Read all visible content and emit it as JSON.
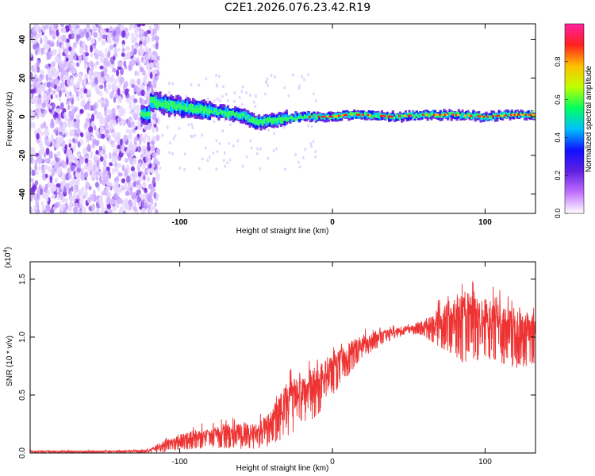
{
  "title": "C2E1.2026.076.23.42.R19",
  "colors": {
    "spectrum_base": "#7a2be0",
    "snr_line": "#ee3333",
    "axis": "#000000"
  },
  "chart_data": [
    {
      "type": "heatmap",
      "name": "spectrogram",
      "xlabel": "Height of straight line (km)",
      "ylabel": "Frequency (Hz)",
      "xlim": [
        -198,
        133
      ],
      "ylim": [
        -50,
        48
      ],
      "xticks": [
        -100,
        0,
        100
      ],
      "yticks": [
        -40,
        -20,
        0,
        20,
        40
      ],
      "noise_region_end_km": -120,
      "signal_track_hz": [
        [
          -120,
          8
        ],
        [
          -100,
          5
        ],
        [
          -80,
          3
        ],
        [
          -60,
          1
        ],
        [
          -50,
          -3
        ],
        [
          -40,
          -2
        ],
        [
          -30,
          -1
        ],
        [
          -20,
          0
        ],
        [
          0,
          0
        ],
        [
          10,
          1
        ],
        [
          20,
          1
        ],
        [
          40,
          0
        ],
        [
          60,
          1
        ],
        [
          80,
          1
        ],
        [
          100,
          0
        ],
        [
          120,
          1
        ],
        [
          133,
          1
        ]
      ],
      "colorbar": {
        "label": "Normalized spectral amplitude",
        "ticks": [
          0.0,
          0.2,
          0.4,
          0.6,
          0.8
        ],
        "range": [
          0,
          1
        ],
        "colors": [
          "#ffffff",
          "#c070ff",
          "#6020e0",
          "#1010ff",
          "#00c0ff",
          "#00ff60",
          "#c0ff00",
          "#ffc000",
          "#ff2020",
          "#ff20a0"
        ]
      }
    },
    {
      "type": "line",
      "name": "snr",
      "xlabel": "Height of straight line (km)",
      "ylabel": "SNR (10 * v/v)",
      "scale_label": "(x10",
      "scale_exp": "4",
      "xlim": [
        -198,
        133
      ],
      "ylim": [
        0,
        1.65
      ],
      "xticks": [
        -100,
        0,
        100
      ],
      "yticks": [
        0.0,
        0.5,
        1.0,
        1.5
      ],
      "ytick_labels": [
        "0.0",
        "0.5",
        "1.0",
        "1.5"
      ],
      "envelope": [
        [
          -198,
          0.02,
          0.0
        ],
        [
          -140,
          0.02,
          0.0
        ],
        [
          -120,
          0.03,
          0.0
        ],
        [
          -110,
          0.12,
          0.0
        ],
        [
          -90,
          0.2,
          0.03
        ],
        [
          -70,
          0.25,
          0.03
        ],
        [
          -50,
          0.25,
          0.02
        ],
        [
          -40,
          0.38,
          0.05
        ],
        [
          -30,
          0.6,
          0.12
        ],
        [
          -20,
          0.68,
          0.2
        ],
        [
          -10,
          0.78,
          0.3
        ],
        [
          0,
          0.85,
          0.48
        ],
        [
          10,
          0.95,
          0.65
        ],
        [
          20,
          1.02,
          0.82
        ],
        [
          40,
          1.08,
          0.98
        ],
        [
          50,
          1.1,
          1.02
        ],
        [
          60,
          1.15,
          1.0
        ],
        [
          75,
          1.3,
          0.85
        ],
        [
          85,
          1.4,
          0.75
        ],
        [
          100,
          1.35,
          0.78
        ],
        [
          120,
          1.25,
          0.7
        ],
        [
          133,
          1.2,
          0.75
        ]
      ]
    }
  ]
}
